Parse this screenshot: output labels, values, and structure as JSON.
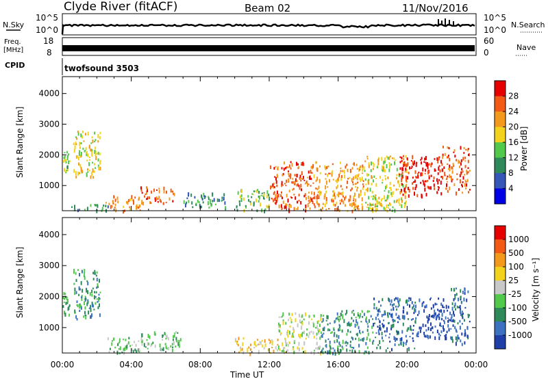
{
  "header": {
    "station": "Clyde River (fitACF)",
    "beam": "Beam 02",
    "date": "11/Nov/2016"
  },
  "meta_panels": {
    "nsky_label": "N.Sky",
    "nsky_ticks": [
      "10^5",
      "10^0"
    ],
    "nsearch_label": "N.Search",
    "freq_label_1": "Freq.",
    "freq_label_2": "[MHz]",
    "freq_ticks": [
      "18",
      "8"
    ],
    "nave_label": "Nave",
    "nave_ticks": [
      "60",
      "0"
    ],
    "cpid_label": "CPID",
    "cpid_value": "twofsound 3503"
  },
  "chart_data": [
    {
      "type": "heatmap",
      "quantity": "Power [dB]",
      "ylabel": "Slant Range [km]",
      "xlabel": "Time UT",
      "x_ticks": [
        "00:00",
        "04:00",
        "08:00",
        "12:00",
        "16:00",
        "20:00",
        "00:00"
      ],
      "y_ticks": [
        "1000",
        "2000",
        "3000",
        "4000"
      ],
      "ylim": [
        180,
        4550
      ],
      "xlim_hours": [
        0,
        24
      ],
      "colorbar": {
        "label": "Power [dB]",
        "ticks": [
          "4",
          "8",
          "12",
          "16",
          "20",
          "24",
          "28"
        ],
        "colors": [
          "#0000e6",
          "#3558b8",
          "#2f8a5a",
          "#52c94a",
          "#f2d21d",
          "#f39a1c",
          "#f25a15",
          "#e60000"
        ]
      },
      "regions": [
        {
          "t0": 0.0,
          "t1": 0.4,
          "r0": 1400,
          "r1": 2200,
          "level": 3
        },
        {
          "t0": 0.6,
          "t1": 2.2,
          "r0": 1300,
          "r1": 2800,
          "level": 4
        },
        {
          "t0": 0.5,
          "t1": 3.0,
          "r0": 200,
          "r1": 400,
          "level": 2
        },
        {
          "t0": 2.5,
          "t1": 4.5,
          "r0": 200,
          "r1": 700,
          "level": 5
        },
        {
          "t0": 4.5,
          "t1": 6.5,
          "r0": 400,
          "r1": 1000,
          "level": 6
        },
        {
          "t0": 7.0,
          "t1": 9.5,
          "r0": 300,
          "r1": 800,
          "level": 2
        },
        {
          "t0": 10.0,
          "t1": 12.0,
          "r0": 200,
          "r1": 900,
          "level": 3
        },
        {
          "t0": 12.0,
          "t1": 14.5,
          "r0": 200,
          "r1": 1800,
          "level": 6
        },
        {
          "t0": 14.5,
          "t1": 17.5,
          "r0": 200,
          "r1": 1800,
          "level": 5
        },
        {
          "t0": 17.5,
          "t1": 20.0,
          "r0": 200,
          "r1": 2000,
          "level": 4
        },
        {
          "t0": 19.5,
          "t1": 22.0,
          "r0": 700,
          "r1": 2000,
          "level": 7
        },
        {
          "t0": 22.0,
          "t1": 23.6,
          "r0": 800,
          "r1": 2300,
          "level": 6
        }
      ]
    },
    {
      "type": "heatmap",
      "quantity": "Velocity [m s^-1]",
      "ylabel": "Slant Range [km]",
      "xlabel": "Time UT",
      "x_ticks": [
        "00:00",
        "04:00",
        "08:00",
        "12:00",
        "16:00",
        "20:00",
        "00:00"
      ],
      "y_ticks": [
        "1000",
        "2000",
        "3000",
        "4000"
      ],
      "ylim": [
        180,
        4550
      ],
      "xlim_hours": [
        0,
        24
      ],
      "colorbar": {
        "label": "Velocity [m s⁻¹]",
        "ticks": [
          "1000",
          "500",
          "100",
          "25",
          "-25",
          "-100",
          "-500",
          "-1000"
        ],
        "colors": [
          "#1f3fa8",
          "#3c72c0",
          "#2f8a5a",
          "#52c94a",
          "#c8c8c8",
          "#f2d21d",
          "#f39a1c",
          "#f25a15",
          "#e60000"
        ]
      },
      "regions": [
        {
          "t0": 0.0,
          "t1": 0.4,
          "r0": 1400,
          "r1": 2200,
          "level": 3
        },
        {
          "t0": 0.6,
          "t1": 2.2,
          "r0": 1300,
          "r1": 2900,
          "level": 2
        },
        {
          "t0": 2.5,
          "t1": 4.5,
          "r0": 200,
          "r1": 700,
          "level": 3
        },
        {
          "t0": 4.5,
          "t1": 7.0,
          "r0": 300,
          "r1": 900,
          "level": 3
        },
        {
          "t0": 10.0,
          "t1": 12.5,
          "r0": 200,
          "r1": 700,
          "level": 5
        },
        {
          "t0": 12.5,
          "t1": 15.0,
          "r0": 200,
          "r1": 1500,
          "level": 4
        },
        {
          "t0": 15.0,
          "t1": 18.0,
          "r0": 200,
          "r1": 1600,
          "level": 2
        },
        {
          "t0": 18.0,
          "t1": 20.5,
          "r0": 300,
          "r1": 2000,
          "level": 1
        },
        {
          "t0": 20.5,
          "t1": 22.5,
          "r0": 700,
          "r1": 2000,
          "level": 0
        },
        {
          "t0": 22.5,
          "t1": 23.6,
          "r0": 500,
          "r1": 2300,
          "level": 1
        }
      ]
    }
  ]
}
